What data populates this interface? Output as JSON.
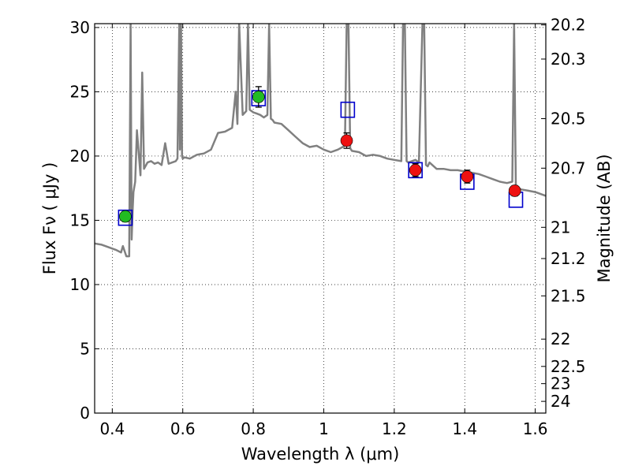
{
  "chart_data": {
    "type": "scatter",
    "title": "",
    "xlabel": "Wavelength  λ (μm)",
    "ylabel": "Flux  Fν  ( μJy )",
    "y2label": "Magnitude (AB)",
    "xlim": [
      0.35,
      1.63
    ],
    "ylim": [
      0,
      30.3
    ],
    "grid": true,
    "legend": "none",
    "xticks": [
      0.4,
      0.6,
      0.8,
      1.0,
      1.2,
      1.4,
      1.6
    ],
    "xtick_labels": [
      "0.4",
      "0.6",
      "0.8",
      "1",
      "1.2",
      "1.4",
      "1.6"
    ],
    "yticks": [
      0,
      5,
      10,
      15,
      20,
      25,
      30
    ],
    "ytick_labels": [
      "0",
      "5",
      "10",
      "15",
      "20",
      "25",
      "30"
    ],
    "y2ticks": [
      {
        "mag": 20.2,
        "label": "20.2"
      },
      {
        "mag": 20.3,
        "label": "20.3"
      },
      {
        "mag": 20.5,
        "label": "20.5"
      },
      {
        "mag": 20.7,
        "label": "20.7"
      },
      {
        "mag": 21.0,
        "label": "21"
      },
      {
        "mag": 21.2,
        "label": "21.2"
      },
      {
        "mag": 21.5,
        "label": "21.5"
      },
      {
        "mag": 22.0,
        "label": "22"
      },
      {
        "mag": 22.5,
        "label": "22.5"
      },
      {
        "mag": 23.0,
        "label": "23"
      },
      {
        "mag": 24.0,
        "label": "24"
      }
    ],
    "series": [
      {
        "kind": "line",
        "color": "#808080",
        "x": [
          0.35,
          0.37,
          0.39,
          0.41,
          0.425,
          0.43,
          0.44,
          0.448,
          0.452,
          0.455,
          0.458,
          0.46,
          0.465,
          0.47,
          0.48,
          0.485,
          0.49,
          0.5,
          0.51,
          0.52,
          0.53,
          0.54,
          0.55,
          0.56,
          0.57,
          0.58,
          0.585,
          0.59,
          0.592,
          0.595,
          0.598,
          0.6,
          0.605,
          0.62,
          0.64,
          0.66,
          0.68,
          0.7,
          0.72,
          0.74,
          0.75,
          0.755,
          0.76,
          0.77,
          0.78,
          0.785,
          0.79,
          0.795,
          0.8,
          0.81,
          0.82,
          0.83,
          0.84,
          0.845,
          0.85,
          0.855,
          0.86,
          0.88,
          0.9,
          0.92,
          0.94,
          0.96,
          0.98,
          1.0,
          1.02,
          1.04,
          1.06,
          1.065,
          1.07,
          1.075,
          1.08,
          1.1,
          1.12,
          1.14,
          1.16,
          1.18,
          1.2,
          1.22,
          1.225,
          1.23,
          1.235,
          1.24,
          1.26,
          1.27,
          1.28,
          1.285,
          1.29,
          1.295,
          1.3,
          1.32,
          1.34,
          1.36,
          1.38,
          1.4,
          1.42,
          1.44,
          1.46,
          1.48,
          1.5,
          1.52,
          1.535,
          1.54,
          1.545,
          1.55,
          1.56,
          1.58,
          1.6,
          1.62,
          1.63
        ],
        "y": [
          13.2,
          13.1,
          12.9,
          12.7,
          12.5,
          13.0,
          12.2,
          12.2,
          30.3,
          13.5,
          16.0,
          17.2,
          18.0,
          22.0,
          18.5,
          26.5,
          19.0,
          19.5,
          19.6,
          19.4,
          19.5,
          19.3,
          21.0,
          19.4,
          19.5,
          19.6,
          19.8,
          30.3,
          20.5,
          30.3,
          20.0,
          19.8,
          19.9,
          19.8,
          20.1,
          20.2,
          20.5,
          21.8,
          21.9,
          22.2,
          25.0,
          22.5,
          30.3,
          23.2,
          23.5,
          30.3,
          23.6,
          23.5,
          23.4,
          23.3,
          23.2,
          23.0,
          23.2,
          30.3,
          22.9,
          22.8,
          22.6,
          22.5,
          22.0,
          21.5,
          21.0,
          20.7,
          20.8,
          20.5,
          20.3,
          20.5,
          20.8,
          30.3,
          30.3,
          20.6,
          20.4,
          20.3,
          20.0,
          20.1,
          20.0,
          19.8,
          19.7,
          19.6,
          30.3,
          30.3,
          19.6,
          19.5,
          19.7,
          19.5,
          30.3,
          30.3,
          19.3,
          19.2,
          19.5,
          19.0,
          19.0,
          18.9,
          18.9,
          18.8,
          18.7,
          18.6,
          18.4,
          18.2,
          18.0,
          17.9,
          18.0,
          30.3,
          17.6,
          17.5,
          17.4,
          17.3,
          17.2,
          17.0,
          16.9
        ]
      },
      {
        "kind": "squares",
        "color": "#0000cc",
        "x": [
          0.437,
          0.815,
          1.068,
          1.26,
          1.407,
          1.545
        ],
        "y": [
          15.2,
          24.5,
          23.6,
          18.9,
          18.0,
          16.6
        ]
      },
      {
        "kind": "points",
        "color": "#22bb22",
        "x": [
          0.437,
          0.815
        ],
        "y": [
          15.3,
          24.6
        ],
        "yerr": [
          0.4,
          0.8
        ]
      },
      {
        "kind": "points",
        "color": "#ee1111",
        "x": [
          1.065,
          1.26,
          1.407,
          1.542
        ],
        "y": [
          21.2,
          18.9,
          18.4,
          17.3
        ],
        "yerr": [
          0.6,
          0.5,
          0.5,
          0.4
        ]
      }
    ]
  }
}
